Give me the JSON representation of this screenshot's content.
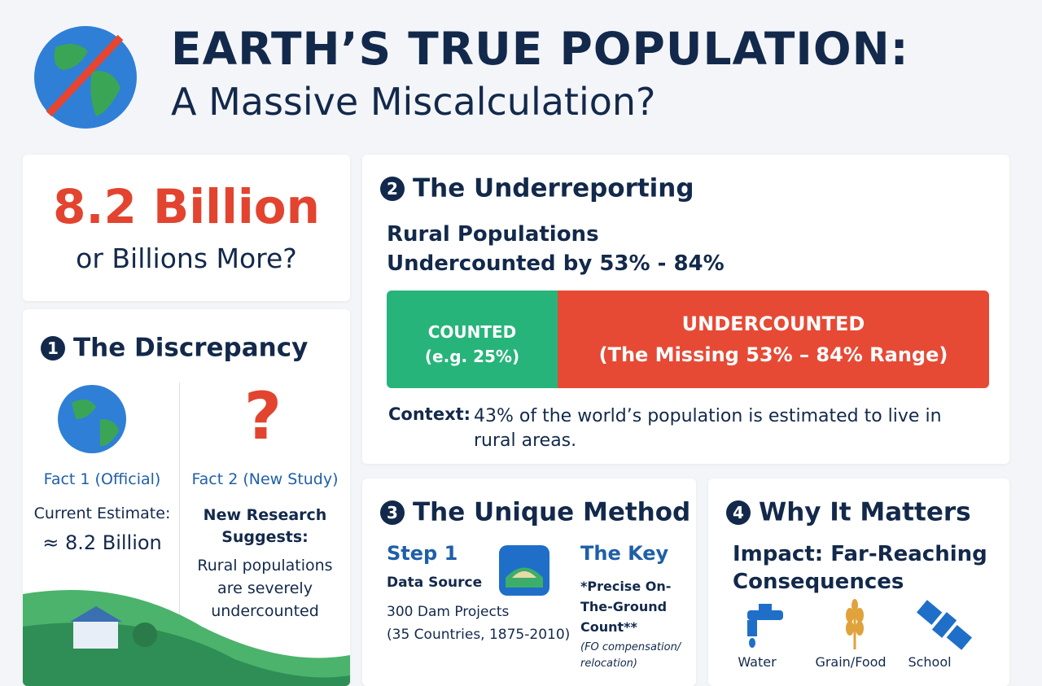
{
  "header": {
    "title": "EARTH’S TRUE POPULATION:",
    "subtitle": "A Massive Miscalculation?"
  },
  "headline": {
    "figure": "8.2 Billion",
    "question": "or Billions More?"
  },
  "discrepancy": {
    "number": "1",
    "title": "The Discrepancy",
    "fact1": {
      "label": "Fact 1 (Official)",
      "lines": [
        "Current Estimate:",
        "≈ 8.2 Billion"
      ]
    },
    "fact2": {
      "icon": "?",
      "label": "Fact 2 (New Study)",
      "lines": [
        "New Research Suggests:",
        "Rural populations are severely undercounted"
      ]
    }
  },
  "underreporting": {
    "number": "2",
    "title": "The Underreporting",
    "subtitle": "Rural Populations Undercounted by 53% - 84%",
    "bar": {
      "counted": [
        "COUNTED",
        "(e.g. 25%)"
      ],
      "undercounted": [
        "UNDERCOUNTED",
        "(The Missing 53% – 84% Range)"
      ]
    },
    "context": {
      "label": "Context:",
      "text": "43% of the world’s population is estimated to live in rural areas."
    }
  },
  "method": {
    "number": "3",
    "title": "The Unique Method",
    "step": {
      "title": "Step 1",
      "label": "Data Source",
      "lines": [
        "300 Dam Projects",
        "(35 Countries, 1875-2010)"
      ]
    },
    "key": {
      "title": "The Key",
      "label": "*Precise On-The-Ground Count**",
      "note": "(FO compensation/ relocation)"
    }
  },
  "matters": {
    "number": "4",
    "title": "Why It Matters",
    "subtitle": "Impact: Far-Reaching Consequences",
    "icons": [
      "Water",
      "Grain/Food",
      "School"
    ]
  }
}
